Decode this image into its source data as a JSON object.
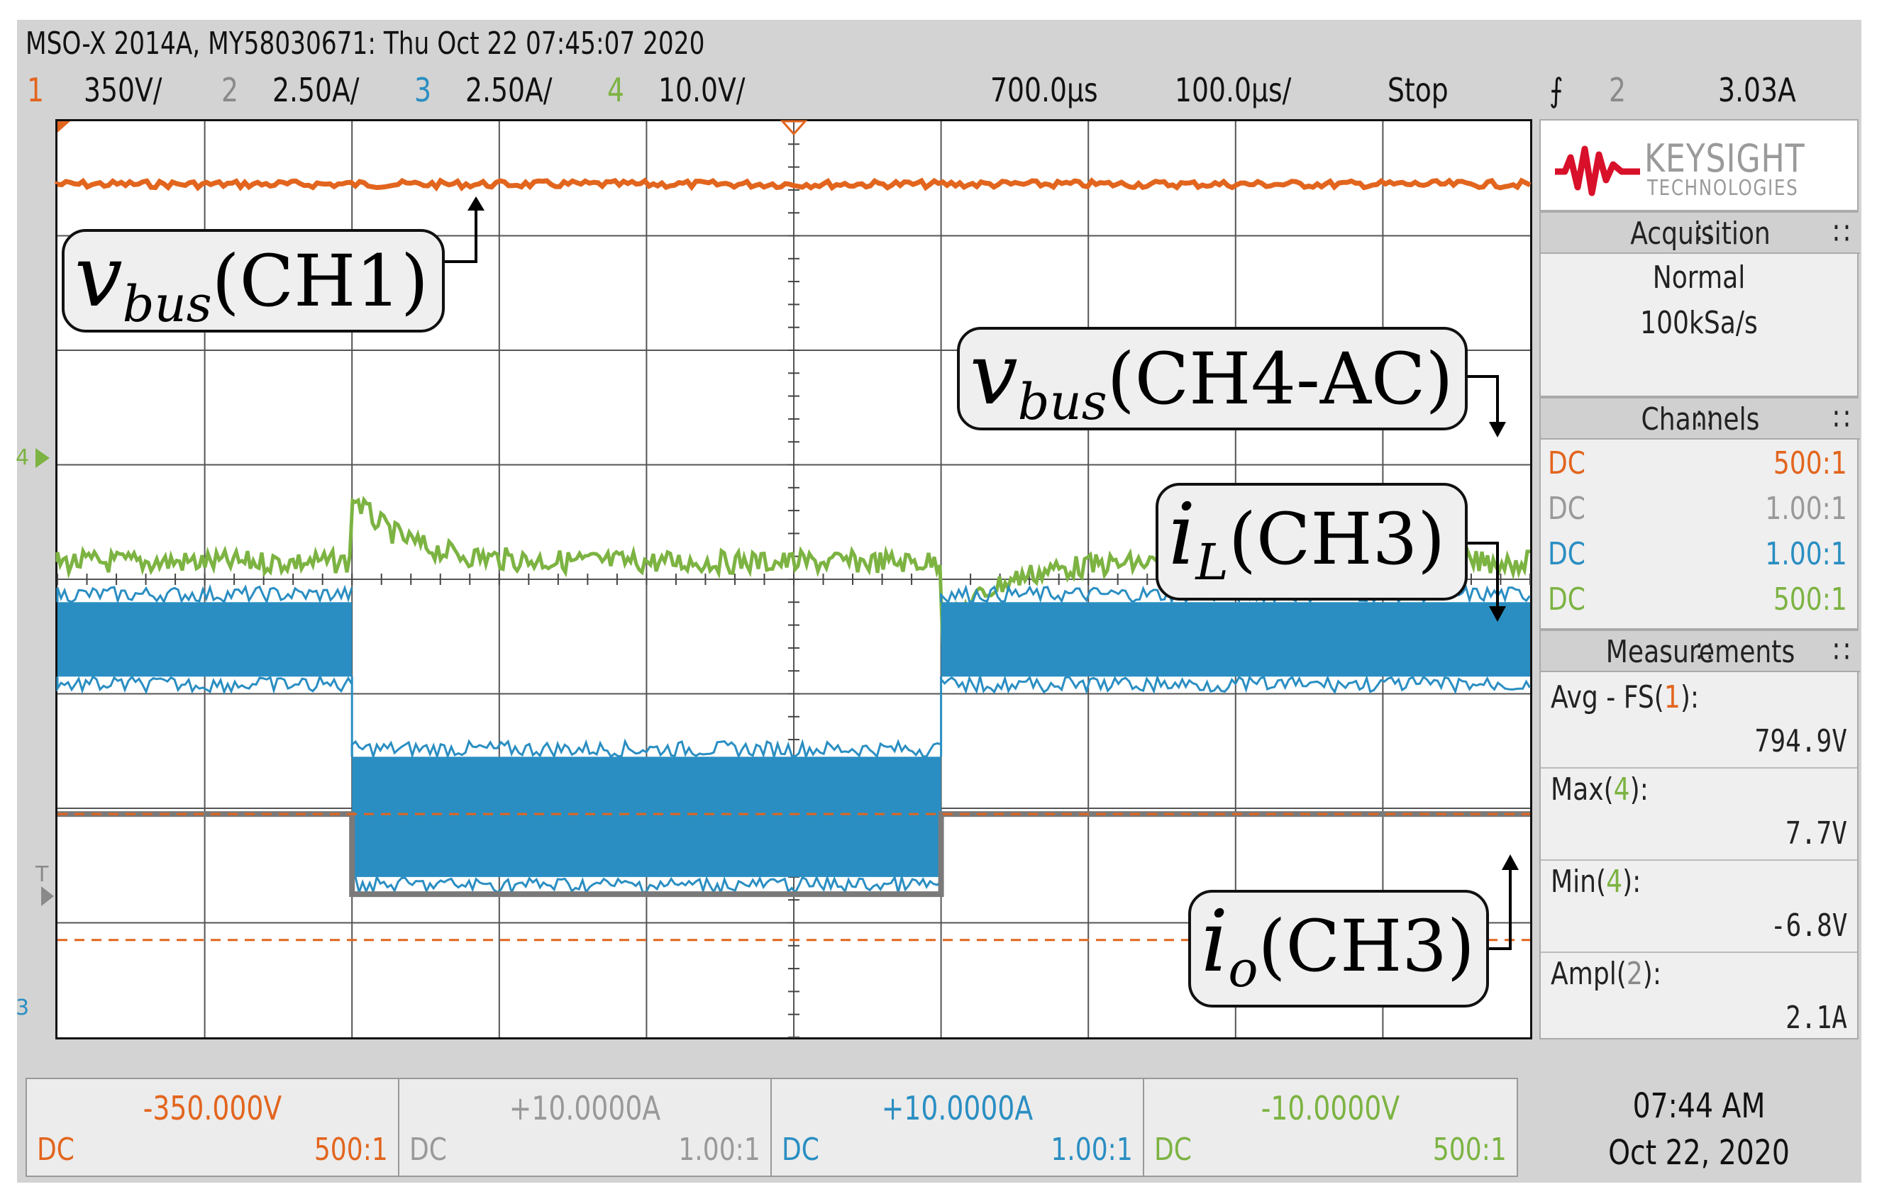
{
  "header": {
    "title": "MSO-X 2014A, MY58030671: Thu Oct 22 07:45:07 2020",
    "channels": [
      {
        "num": "1",
        "scale": "350V/",
        "color": "#e2651e"
      },
      {
        "num": "2",
        "scale": "2.50A/",
        "color": "#8a8a8a"
      },
      {
        "num": "3",
        "scale": "2.50A/",
        "color": "#2a8ec2"
      },
      {
        "num": "4",
        "scale": "10.0V/",
        "color": "#7cb342"
      }
    ],
    "time_delay": "700.0µs",
    "time_scale": "100.0µs/",
    "run_state": "Stop",
    "trigger_channel": "2",
    "trigger_level": "3.03A"
  },
  "brand": {
    "name": "KEYSIGHT",
    "sub": "TECHNOLOGIES"
  },
  "acquisition": {
    "heading": "Acquisition",
    "mode": "Normal",
    "rate": "100kSa/s"
  },
  "channels_panel": {
    "heading": "Channels",
    "rows": [
      {
        "coupling": "DC",
        "probe": "500:1",
        "color": "#e2651e"
      },
      {
        "coupling": "DC",
        "probe": "1.00:1",
        "color": "#999999"
      },
      {
        "coupling": "DC",
        "probe": "1.00:1",
        "color": "#2a8ec2"
      },
      {
        "coupling": "DC",
        "probe": "500:1",
        "color": "#7cb342"
      }
    ]
  },
  "measurements": {
    "heading": "Measurements",
    "items": [
      {
        "label": "Avg - FS(",
        "src": "1",
        "src_color": "#e2651e",
        "value": "794.9V"
      },
      {
        "label": "Max(",
        "src": "4",
        "src_color": "#7cb342",
        "value": "7.7V"
      },
      {
        "label": "Min(",
        "src": "4",
        "src_color": "#7cb342",
        "value": "-6.8V"
      },
      {
        "label": "Ampl(",
        "src": "2",
        "src_color": "#8a8a8a",
        "value": "2.1A"
      }
    ],
    "close_paren": "):"
  },
  "bottom_bar": [
    {
      "offset": "-350.000V",
      "coupling": "DC",
      "probe": "500:1",
      "color": "#e2651e"
    },
    {
      "offset": "+10.0000A",
      "coupling": "DC",
      "probe": "1.00:1",
      "color": "#999999"
    },
    {
      "offset": "+10.0000A",
      "coupling": "DC",
      "probe": "1.00:1",
      "color": "#2a8ec2"
    },
    {
      "offset": "-10.0000V",
      "coupling": "DC",
      "probe": "500:1",
      "color": "#7cb342"
    }
  ],
  "clock": {
    "time": "07:44 AM",
    "date": "Oct 22, 2020"
  },
  "ground_markers": {
    "ch4": "4",
    "ch2": "T",
    "ch3": "3"
  },
  "annotations": [
    {
      "symbol": "v",
      "sub": "bus",
      "channel": "(CH1)"
    },
    {
      "symbol": "v",
      "sub": "bus",
      "channel": "(CH4-AC)"
    },
    {
      "symbol": "i",
      "sub": "L",
      "channel": "(CH3)"
    },
    {
      "symbol": "i",
      "sub": "o",
      "channel": "(CH3)"
    }
  ],
  "waveforms": {
    "ch1_color": "#e2651e",
    "ch2_color": "#7a7a7a",
    "ch3_color": "#2a8ec2",
    "ch4_color": "#7cb342",
    "step_up_div": 2,
    "step_down_div": 6
  }
}
